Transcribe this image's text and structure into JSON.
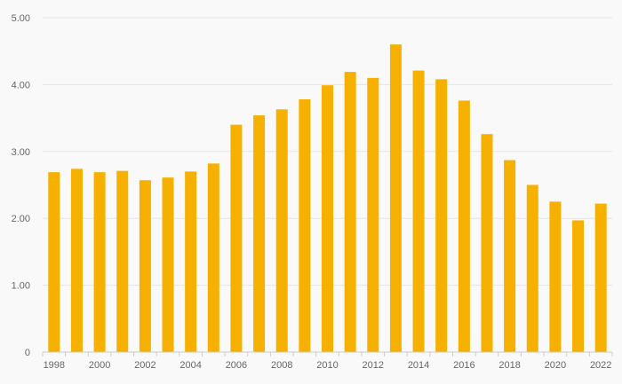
{
  "chart_data": {
    "type": "bar",
    "title": "",
    "xlabel": "",
    "ylabel": "",
    "categories": [
      "1998",
      "1999",
      "2000",
      "2001",
      "2002",
      "2003",
      "2004",
      "2005",
      "2006",
      "2007",
      "2008",
      "2009",
      "2010",
      "2011",
      "2012",
      "2013",
      "2014",
      "2015",
      "2016",
      "2017",
      "2018",
      "2019",
      "2020",
      "2021",
      "2022"
    ],
    "x_tick_labels": [
      "1998",
      "2000",
      "2002",
      "2004",
      "2006",
      "2008",
      "2010",
      "2012",
      "2014",
      "2016",
      "2018",
      "2020",
      "2022"
    ],
    "values": [
      2.69,
      2.74,
      2.69,
      2.71,
      2.57,
      2.61,
      2.7,
      2.82,
      3.4,
      3.54,
      3.63,
      3.78,
      3.99,
      4.19,
      4.1,
      4.6,
      4.21,
      4.08,
      3.76,
      3.26,
      2.87,
      2.5,
      2.25,
      1.97,
      2.22
    ],
    "ylim": [
      0,
      5
    ],
    "y_ticks": [
      0,
      1,
      2,
      3,
      4,
      5
    ],
    "y_tick_labels": [
      "0",
      "1.00",
      "2.00",
      "3.00",
      "4.00",
      "5.00"
    ],
    "grid": true,
    "legend": "none",
    "bar_color": "#f6b000"
  }
}
